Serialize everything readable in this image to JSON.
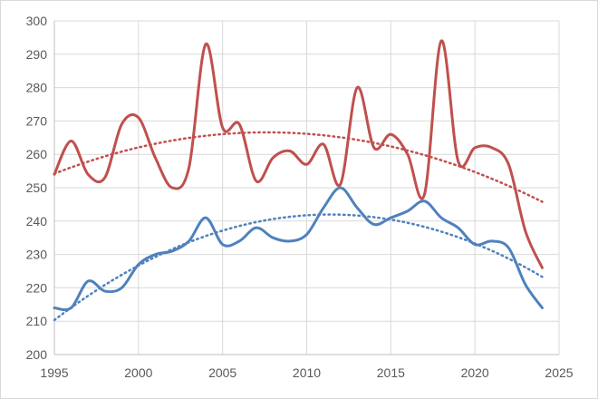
{
  "chart_data": {
    "type": "line",
    "title": "",
    "xlabel": "",
    "ylabel": "",
    "xlim": [
      1995,
      2025
    ],
    "ylim": [
      200,
      300
    ],
    "x_ticks": [
      1995,
      2000,
      2005,
      2010,
      2015,
      2020,
      2025
    ],
    "y_ticks": [
      200,
      210,
      220,
      230,
      240,
      250,
      260,
      270,
      280,
      290,
      300
    ],
    "grid": true,
    "legend": "none",
    "series": [
      {
        "color": "#C0504D",
        "style": "smooth-line",
        "trendline": "polynomial",
        "x": [
          1995,
          1996,
          1997,
          1998,
          1999,
          2000,
          2001,
          2002,
          2003,
          2004,
          2005,
          2006,
          2007,
          2008,
          2009,
          2010,
          2011,
          2012,
          2013,
          2014,
          2015,
          2016,
          2017,
          2018,
          2019,
          2020,
          2021,
          2022,
          2023,
          2024
        ],
        "values": [
          254,
          264,
          254,
          253,
          269,
          271,
          259,
          250,
          256,
          293,
          268,
          269,
          252,
          259,
          261,
          257,
          263,
          251,
          280,
          262,
          266,
          260,
          248,
          294,
          258,
          262,
          262,
          257,
          237,
          226
        ]
      },
      {
        "color": "#4F81BD",
        "style": "smooth-line",
        "trendline": "polynomial",
        "x": [
          1995,
          1996,
          1997,
          1998,
          1999,
          2000,
          2001,
          2002,
          2003,
          2004,
          2005,
          2006,
          2007,
          2008,
          2009,
          2010,
          2011,
          2012,
          2013,
          2014,
          2015,
          2016,
          2017,
          2018,
          2019,
          2020,
          2021,
          2022,
          2023,
          2024
        ],
        "values": [
          214,
          214,
          222,
          219,
          220,
          227,
          230,
          231,
          234,
          241,
          233,
          234,
          238,
          235,
          234,
          236,
          244,
          250,
          244,
          239,
          241,
          243,
          246,
          241,
          238,
          233,
          234,
          232,
          221,
          214
        ]
      }
    ]
  }
}
